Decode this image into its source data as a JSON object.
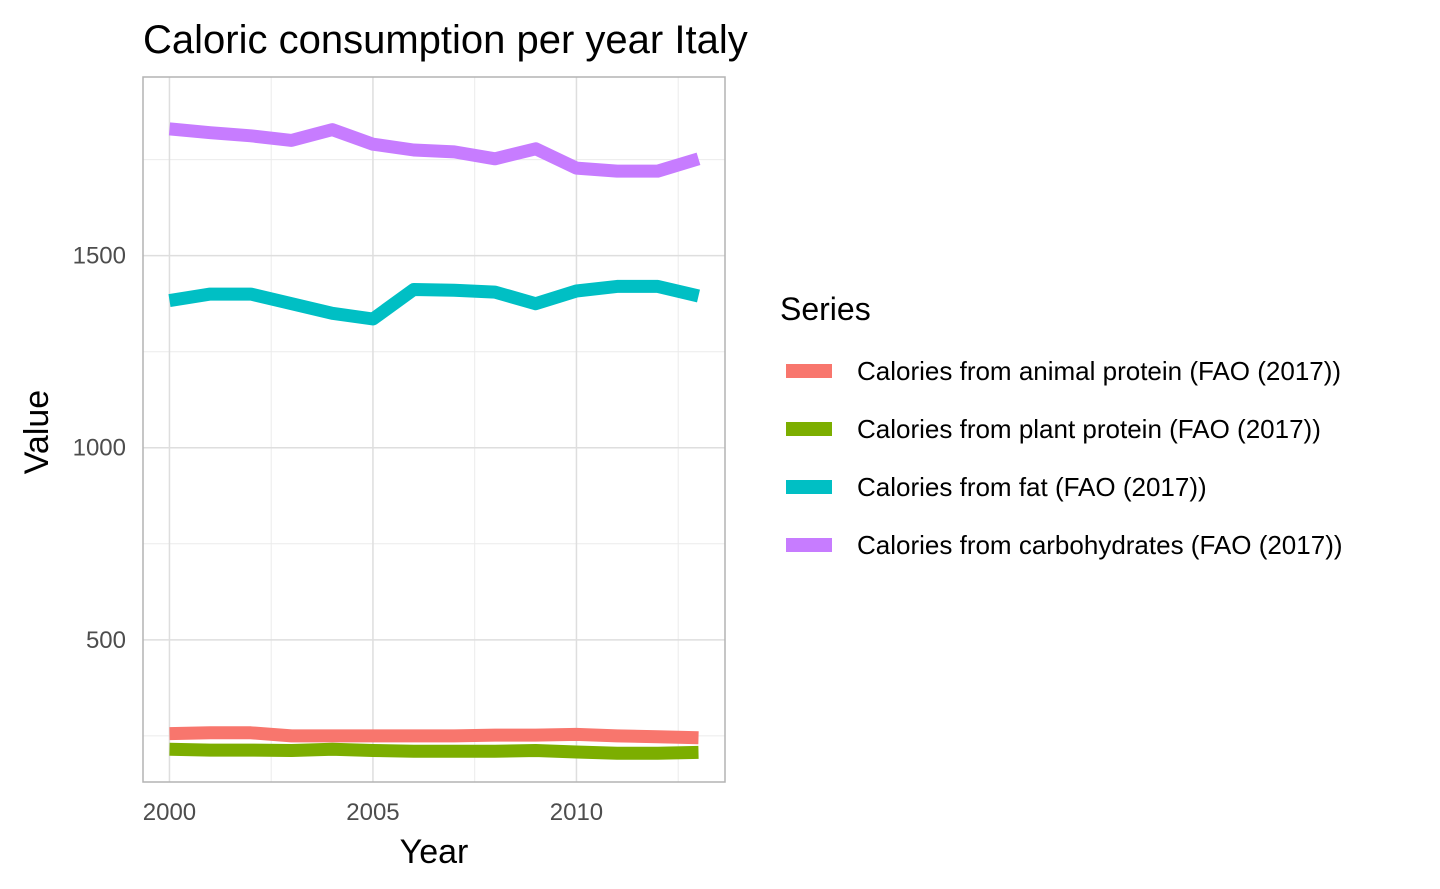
{
  "chart_data": {
    "type": "line",
    "title": "Caloric consumption per year Italy",
    "xlabel": "Year",
    "ylabel": "Value",
    "xlim": [
      1999.35,
      2013.65
    ],
    "ylim": [
      130,
      1965
    ],
    "x_ticks": [
      2000,
      2005,
      2010
    ],
    "y_ticks": [
      500,
      1000,
      1500
    ],
    "grid": true,
    "legend_title": "Series",
    "legend_position": "right",
    "x": [
      2000,
      2001,
      2002,
      2003,
      2004,
      2005,
      2006,
      2007,
      2008,
      2009,
      2010,
      2011,
      2012,
      2013
    ],
    "series": [
      {
        "name": "Calories from animal protein (FAO (2017))",
        "color": "#F8766D",
        "values": [
          256,
          258,
          258,
          250,
          250,
          250,
          250,
          250,
          252,
          252,
          254,
          250,
          248,
          245
        ]
      },
      {
        "name": "Calories from plant protein (FAO (2017))",
        "color": "#7CAE00",
        "values": [
          215,
          213,
          213,
          212,
          215,
          212,
          210,
          210,
          210,
          212,
          208,
          205,
          205,
          207
        ]
      },
      {
        "name": "Calories from fat (FAO (2017))",
        "color": "#00BFC4",
        "values": [
          1383,
          1400,
          1400,
          1375,
          1350,
          1335,
          1412,
          1410,
          1405,
          1375,
          1408,
          1420,
          1420,
          1395
        ]
      },
      {
        "name": "Calories from carbohydrates (FAO (2017))",
        "color": "#C77CFF",
        "values": [
          1830,
          1820,
          1812,
          1800,
          1828,
          1790,
          1775,
          1770,
          1752,
          1778,
          1728,
          1720,
          1720,
          1752
        ]
      }
    ]
  }
}
